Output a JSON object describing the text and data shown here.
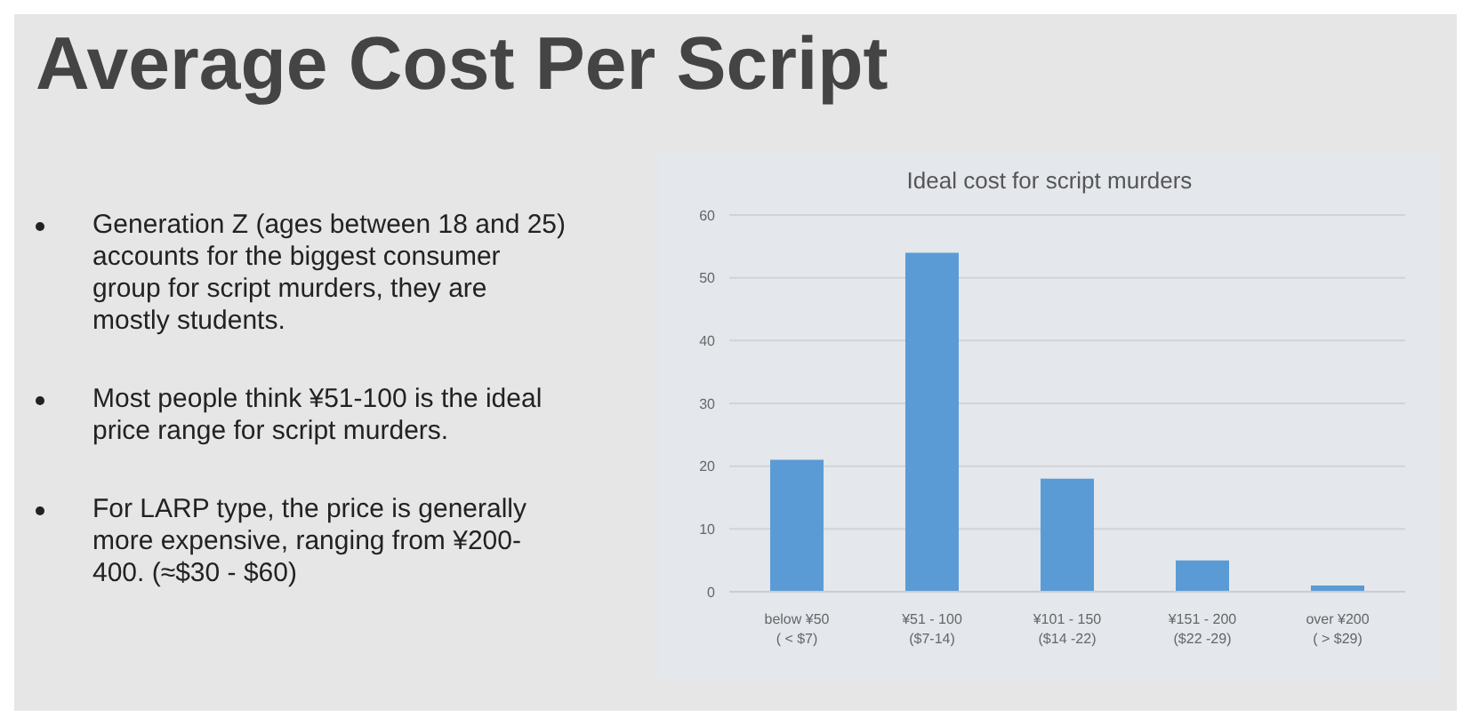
{
  "chart_data": {
    "type": "bar",
    "title": "Average Cost Per Script",
    "subtitle": "Ideal cost for script murders",
    "annotations": [
      "Generation Z (ages between 18 and 25) accounts for the biggest consumer group for script murders, they are mostly students.",
      "Most people think ¥51-100 is the ideal price range for script murders.",
      "For LARP type, the price is generally more expensive, ranging from ¥200-400.  (≈$30 - $60)"
    ],
    "categories": [
      "below ¥50\n( < $7)",
      "¥51 - 100\n($7-14)",
      "¥101 - 150\n($14 -22)",
      "¥151 - 200\n($22 -29)",
      "over ¥200\n( > $29)"
    ],
    "values": [
      21,
      54,
      18,
      5,
      1
    ],
    "color": "#5b9bd5",
    "ylim": [
      0,
      60
    ],
    "yticks": [
      0,
      10,
      20,
      30,
      40,
      50,
      60
    ],
    "grid": "y"
  }
}
